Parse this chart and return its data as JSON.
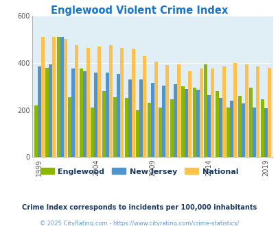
{
  "title": "Englewood Violent Crime Index",
  "title_color": "#1874CD",
  "years": [
    1999,
    2000,
    2001,
    2002,
    2003,
    2004,
    2005,
    2006,
    2007,
    2008,
    2009,
    2010,
    2011,
    2012,
    2013,
    2014,
    2015,
    2016,
    2017,
    2018,
    2019
  ],
  "englewood": [
    220,
    380,
    510,
    255,
    375,
    210,
    280,
    255,
    250,
    200,
    230,
    210,
    245,
    300,
    295,
    395,
    280,
    210,
    260,
    295,
    245
  ],
  "new_jersey": [
    385,
    395,
    510,
    375,
    365,
    358,
    358,
    353,
    330,
    330,
    315,
    305,
    310,
    290,
    285,
    263,
    250,
    240,
    228,
    210,
    207
  ],
  "national": [
    510,
    510,
    500,
    475,
    465,
    470,
    475,
    465,
    460,
    430,
    405,
    390,
    395,
    365,
    375,
    375,
    385,
    400,
    395,
    385,
    380
  ],
  "englewood_color": "#8DB600",
  "nj_color": "#4F94CD",
  "national_color": "#FFC04C",
  "bg_color": "#E0EEF5",
  "ylim": [
    0,
    600
  ],
  "yticks": [
    0,
    200,
    400,
    600
  ],
  "xlabel_years": [
    1999,
    2004,
    2009,
    2014,
    2019
  ],
  "legend_labels": [
    "Englewood",
    "New Jersey",
    "National"
  ],
  "footnote1": "Crime Index corresponds to incidents per 100,000 inhabitants",
  "footnote2": "© 2025 CityRating.com - https://www.cityrating.com/crime-statistics/",
  "footnote1_color": "#1C3A5E",
  "footnote2_color": "#6699CC"
}
